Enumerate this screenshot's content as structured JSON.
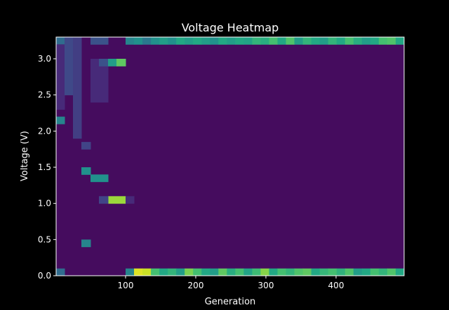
{
  "chart_data": {
    "type": "heatmap",
    "title": "Voltage Heatmap",
    "xlabel": "Generation",
    "ylabel": "Voltage (V)",
    "xlim": [
      1,
      497
    ],
    "ylim": [
      0.0,
      3.3
    ],
    "grid": false,
    "x_ticks": [
      "100",
      "200",
      "300",
      "400"
    ],
    "y_ticks": [
      "0.0",
      "0.5",
      "1.0",
      "1.5",
      "2.0",
      "2.5",
      "3.0"
    ],
    "colormap": "viridis",
    "colors": {
      "background": "#000000",
      "axis": "#ffffff",
      "text": "#ffffff"
    },
    "notes_on_values": "Values are relative counts (0 to 1) per voltage bin, 33 bins of 0.1 V.",
    "regions": [
      {
        "gen": [
          1,
          13
        ],
        "v": [
          0.0,
          0.1
        ],
        "value": 0.35
      },
      {
        "gen": [
          1,
          13
        ],
        "v": [
          2.1,
          2.2
        ],
        "value": 0.45
      },
      {
        "gen": [
          1,
          13
        ],
        "v": [
          3.2,
          3.3
        ],
        "value": 0.35
      },
      {
        "gen": [
          1,
          13
        ],
        "v": [
          2.3,
          3.2
        ],
        "value": 0.12
      },
      {
        "gen": [
          13,
          25
        ],
        "v": [
          2.5,
          3.3
        ],
        "value": 0.22
      },
      {
        "gen": [
          25,
          37
        ],
        "v": [
          1.9,
          3.3
        ],
        "value": 0.18
      },
      {
        "gen": [
          37,
          50
        ],
        "v": [
          1.4,
          1.5
        ],
        "value": 0.5
      },
      {
        "gen": [
          37,
          50
        ],
        "v": [
          0.4,
          0.5
        ],
        "value": 0.45
      },
      {
        "gen": [
          37,
          50
        ],
        "v": [
          1.75,
          1.85
        ],
        "value": 0.2
      },
      {
        "gen": [
          50,
          75
        ],
        "v": [
          3.2,
          3.3
        ],
        "value": 0.25
      },
      {
        "gen": [
          50,
          75
        ],
        "v": [
          1.3,
          1.4
        ],
        "value": 0.5
      },
      {
        "gen": [
          50,
          75
        ],
        "v": [
          2.4,
          3.0
        ],
        "value": 0.12
      },
      {
        "gen": [
          62,
          75
        ],
        "v": [
          2.9,
          3.0
        ],
        "value": 0.25
      },
      {
        "gen": [
          75,
          87
        ],
        "v": [
          2.9,
          3.0
        ],
        "value": 0.55
      },
      {
        "gen": [
          87,
          100
        ],
        "v": [
          2.9,
          3.0
        ],
        "value": 0.75
      },
      {
        "gen": [
          75,
          100
        ],
        "v": [
          1.0,
          1.1
        ],
        "value": 0.85
      },
      {
        "gen": [
          62,
          75
        ],
        "v": [
          1.0,
          1.1
        ],
        "value": 0.2
      },
      {
        "gen": [
          100,
          112
        ],
        "v": [
          1.0,
          1.1
        ],
        "value": 0.12
      }
    ],
    "bottom_row": {
      "v": [
        0.0,
        0.1
      ],
      "gen": [
        100,
        497
      ],
      "values": [
        0.45,
        0.95,
        0.92,
        0.7,
        0.6,
        0.65,
        0.55,
        0.8,
        0.7,
        0.6,
        0.55,
        0.75,
        0.62,
        0.7,
        0.58,
        0.68,
        0.82,
        0.6,
        0.7,
        0.65,
        0.72,
        0.75,
        0.6,
        0.66,
        0.7,
        0.64,
        0.72,
        0.55,
        0.6,
        0.7,
        0.65,
        0.72,
        0.6
      ]
    },
    "top_row": {
      "v": [
        3.2,
        3.3
      ],
      "gen": [
        100,
        497
      ],
      "values": [
        0.45,
        0.5,
        0.4,
        0.5,
        0.55,
        0.5,
        0.6,
        0.55,
        0.6,
        0.55,
        0.5,
        0.6,
        0.55,
        0.6,
        0.58,
        0.65,
        0.62,
        0.7,
        0.6,
        0.72,
        0.55,
        0.65,
        0.6,
        0.55,
        0.65,
        0.6,
        0.7,
        0.62,
        0.55,
        0.6,
        0.7,
        0.72,
        0.6
      ]
    },
    "background_value": 0.03
  }
}
